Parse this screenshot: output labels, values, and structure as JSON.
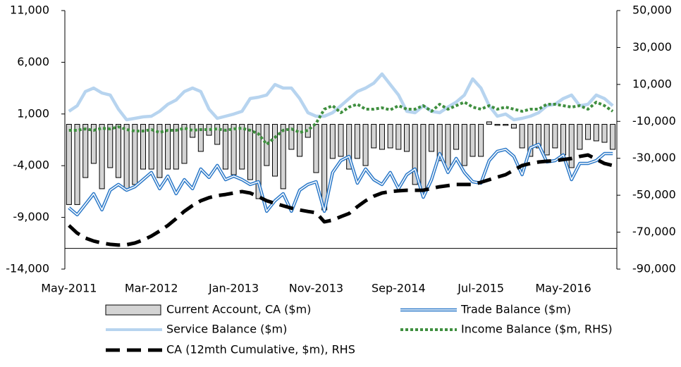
{
  "chart_data": {
    "type": "combo",
    "categories": [
      "May-2011",
      null,
      null,
      null,
      null,
      null,
      null,
      null,
      null,
      null,
      "Mar-2012",
      null,
      null,
      null,
      null,
      null,
      null,
      null,
      null,
      null,
      "Jan-2013",
      null,
      null,
      null,
      null,
      null,
      null,
      null,
      null,
      null,
      "Nov-2013",
      null,
      null,
      null,
      null,
      null,
      null,
      null,
      null,
      null,
      "Sep-2014",
      null,
      null,
      null,
      null,
      null,
      null,
      null,
      null,
      null,
      "Jul-2015",
      null,
      null,
      null,
      null,
      null,
      null,
      null,
      null,
      null,
      "May-2016",
      null,
      null,
      null,
      null,
      null,
      null
    ],
    "ylim": [
      -14000,
      11000
    ],
    "yticks": [
      {
        "value": -14000,
        "label": "-14,000"
      },
      {
        "value": -9000,
        "label": "-9,000"
      },
      {
        "value": -4000,
        "label": "-4,000"
      },
      {
        "value": 1000,
        "label": "1,000"
      },
      {
        "value": 6000,
        "label": "6,000"
      },
      {
        "value": 11000,
        "label": "11,000"
      }
    ],
    "y2lim": [
      -90000,
      50000
    ],
    "y2ticks": [
      {
        "value": -90000,
        "label": "-90,000"
      },
      {
        "value": -70000,
        "label": "-70,000"
      },
      {
        "value": -50000,
        "label": "-50,000"
      },
      {
        "value": -30000,
        "label": "-30,000"
      },
      {
        "value": -10000,
        "label": "-10,000"
      },
      {
        "value": 10000,
        "label": "10,000"
      },
      {
        "value": 30000,
        "label": "30,000"
      },
      {
        "value": 50000,
        "label": "50,000"
      }
    ],
    "x_axis_crosses": -12000,
    "series": [
      {
        "name": "Current Account, CA ($m)",
        "type": "bar",
        "color": "#d4d4d4",
        "edgecolor": "#000000",
        "axis": "y",
        "values": [
          -7760,
          -7760,
          -5150,
          -3780,
          -6230,
          -4190,
          -5150,
          -6370,
          -5820,
          -4330,
          -4330,
          -5150,
          -4330,
          -4330,
          -3780,
          -1260,
          -2620,
          -1060,
          -1940,
          -4330,
          -4870,
          -4330,
          -5350,
          -7190,
          -3990,
          -5010,
          -6230,
          -2420,
          -3100,
          -1260,
          -4670,
          -8280,
          -3300,
          -3100,
          -4330,
          -3300,
          -3990,
          -2280,
          -2420,
          -2280,
          -2420,
          -2620,
          -5820,
          -6510,
          -2620,
          -3510,
          -4330,
          -2420,
          -3990,
          -3100,
          -3100,
          240,
          -100,
          -100,
          -370,
          -2280,
          -3100,
          -2280,
          -2960,
          -2280,
          -2960,
          -4190,
          -2420,
          -1460,
          -1600,
          -1740,
          -2420
        ]
      },
      {
        "name": "Trade Balance ($m)",
        "type": "line",
        "line_style": "double",
        "color": "#2a78c8",
        "axis": "y",
        "values": [
          -8070,
          -8750,
          -7730,
          -6710,
          -8270,
          -6370,
          -5820,
          -6370,
          -6030,
          -5350,
          -4660,
          -6230,
          -5010,
          -6710,
          -5350,
          -6230,
          -4320,
          -5140,
          -3980,
          -5350,
          -5010,
          -5350,
          -5820,
          -5550,
          -8410,
          -7390,
          -6710,
          -8410,
          -6370,
          -5820,
          -5550,
          -8410,
          -4660,
          -3510,
          -3100,
          -5690,
          -4320,
          -5350,
          -5820,
          -4660,
          -6230,
          -4870,
          -4320,
          -7050,
          -5350,
          -2830,
          -4660,
          -3300,
          -4660,
          -5550,
          -5690,
          -3510,
          -2620,
          -2420,
          -3100,
          -4870,
          -2280,
          -1940,
          -3640,
          -3510,
          -2960,
          -5350,
          -3780,
          -3780,
          -3510,
          -2830,
          -2830
        ]
      },
      {
        "name": "Service Balance ($m)",
        "type": "line",
        "line_style": "solid",
        "color": "#b7d4ef",
        "axis": "y",
        "values": [
          1260,
          1800,
          3170,
          3510,
          3030,
          2830,
          1460,
          440,
          580,
          720,
          780,
          1260,
          1940,
          2350,
          3170,
          3510,
          3170,
          1460,
          580,
          780,
          990,
          1260,
          2490,
          2620,
          2830,
          3850,
          3510,
          3510,
          2490,
          1120,
          780,
          780,
          1120,
          1800,
          2490,
          3170,
          3510,
          3980,
          4870,
          3850,
          2830,
          1260,
          1120,
          1800,
          1260,
          1120,
          1670,
          2150,
          2830,
          4390,
          3510,
          1800,
          780,
          990,
          440,
          580,
          780,
          1120,
          1800,
          1940,
          2490,
          2830,
          1800,
          1940,
          2830,
          2490,
          1800
        ]
      },
      {
        "name": "Income Balance ($m, RHS)",
        "type": "line",
        "line_style": "dotted",
        "color": "#3f8f3f",
        "axis": "y2",
        "values": [
          -14860,
          -14860,
          -14090,
          -14860,
          -13710,
          -14090,
          -12950,
          -14470,
          -15240,
          -15240,
          -14470,
          -16000,
          -14860,
          -14860,
          -13710,
          -14860,
          -14470,
          -14470,
          -14090,
          -14860,
          -14090,
          -13710,
          -14860,
          -16760,
          -22490,
          -18670,
          -14860,
          -14090,
          -16000,
          -14860,
          -11040,
          -3410,
          -1500,
          -5320,
          -2270,
          -740,
          -3410,
          -3410,
          -2650,
          -3790,
          -1500,
          -3410,
          -3410,
          -1500,
          -4560,
          -740,
          -3410,
          -1500,
          400,
          -2270,
          -3410,
          -1500,
          -3410,
          -2270,
          -3410,
          -4560,
          -3410,
          -3410,
          -740,
          -740,
          -1500,
          -2270,
          -1500,
          -3410,
          400,
          -1500,
          -4560
        ]
      },
      {
        "name": "CA (12mth Cumulative, $m), RHS",
        "type": "line",
        "line_style": "dashed",
        "color": "#000000",
        "axis": "y2",
        "values": [
          -66400,
          -70500,
          -73200,
          -74800,
          -75900,
          -76600,
          -77000,
          -76800,
          -75900,
          -74300,
          -72100,
          -69400,
          -66400,
          -62700,
          -58700,
          -55600,
          -53000,
          -51300,
          -50200,
          -49600,
          -48800,
          -48000,
          -48800,
          -50800,
          -53000,
          -54400,
          -55700,
          -57000,
          -58000,
          -58800,
          -59500,
          -64400,
          -63500,
          -61600,
          -59900,
          -56200,
          -53000,
          -50500,
          -48800,
          -48000,
          -47600,
          -47300,
          -47300,
          -47300,
          -46300,
          -45400,
          -44800,
          -44200,
          -44200,
          -44200,
          -43000,
          -41600,
          -40200,
          -38900,
          -36400,
          -33900,
          -32800,
          -32000,
          -31600,
          -31300,
          -30700,
          -30100,
          -29000,
          -28200,
          -30500,
          -32800,
          -33900
        ]
      }
    ]
  }
}
